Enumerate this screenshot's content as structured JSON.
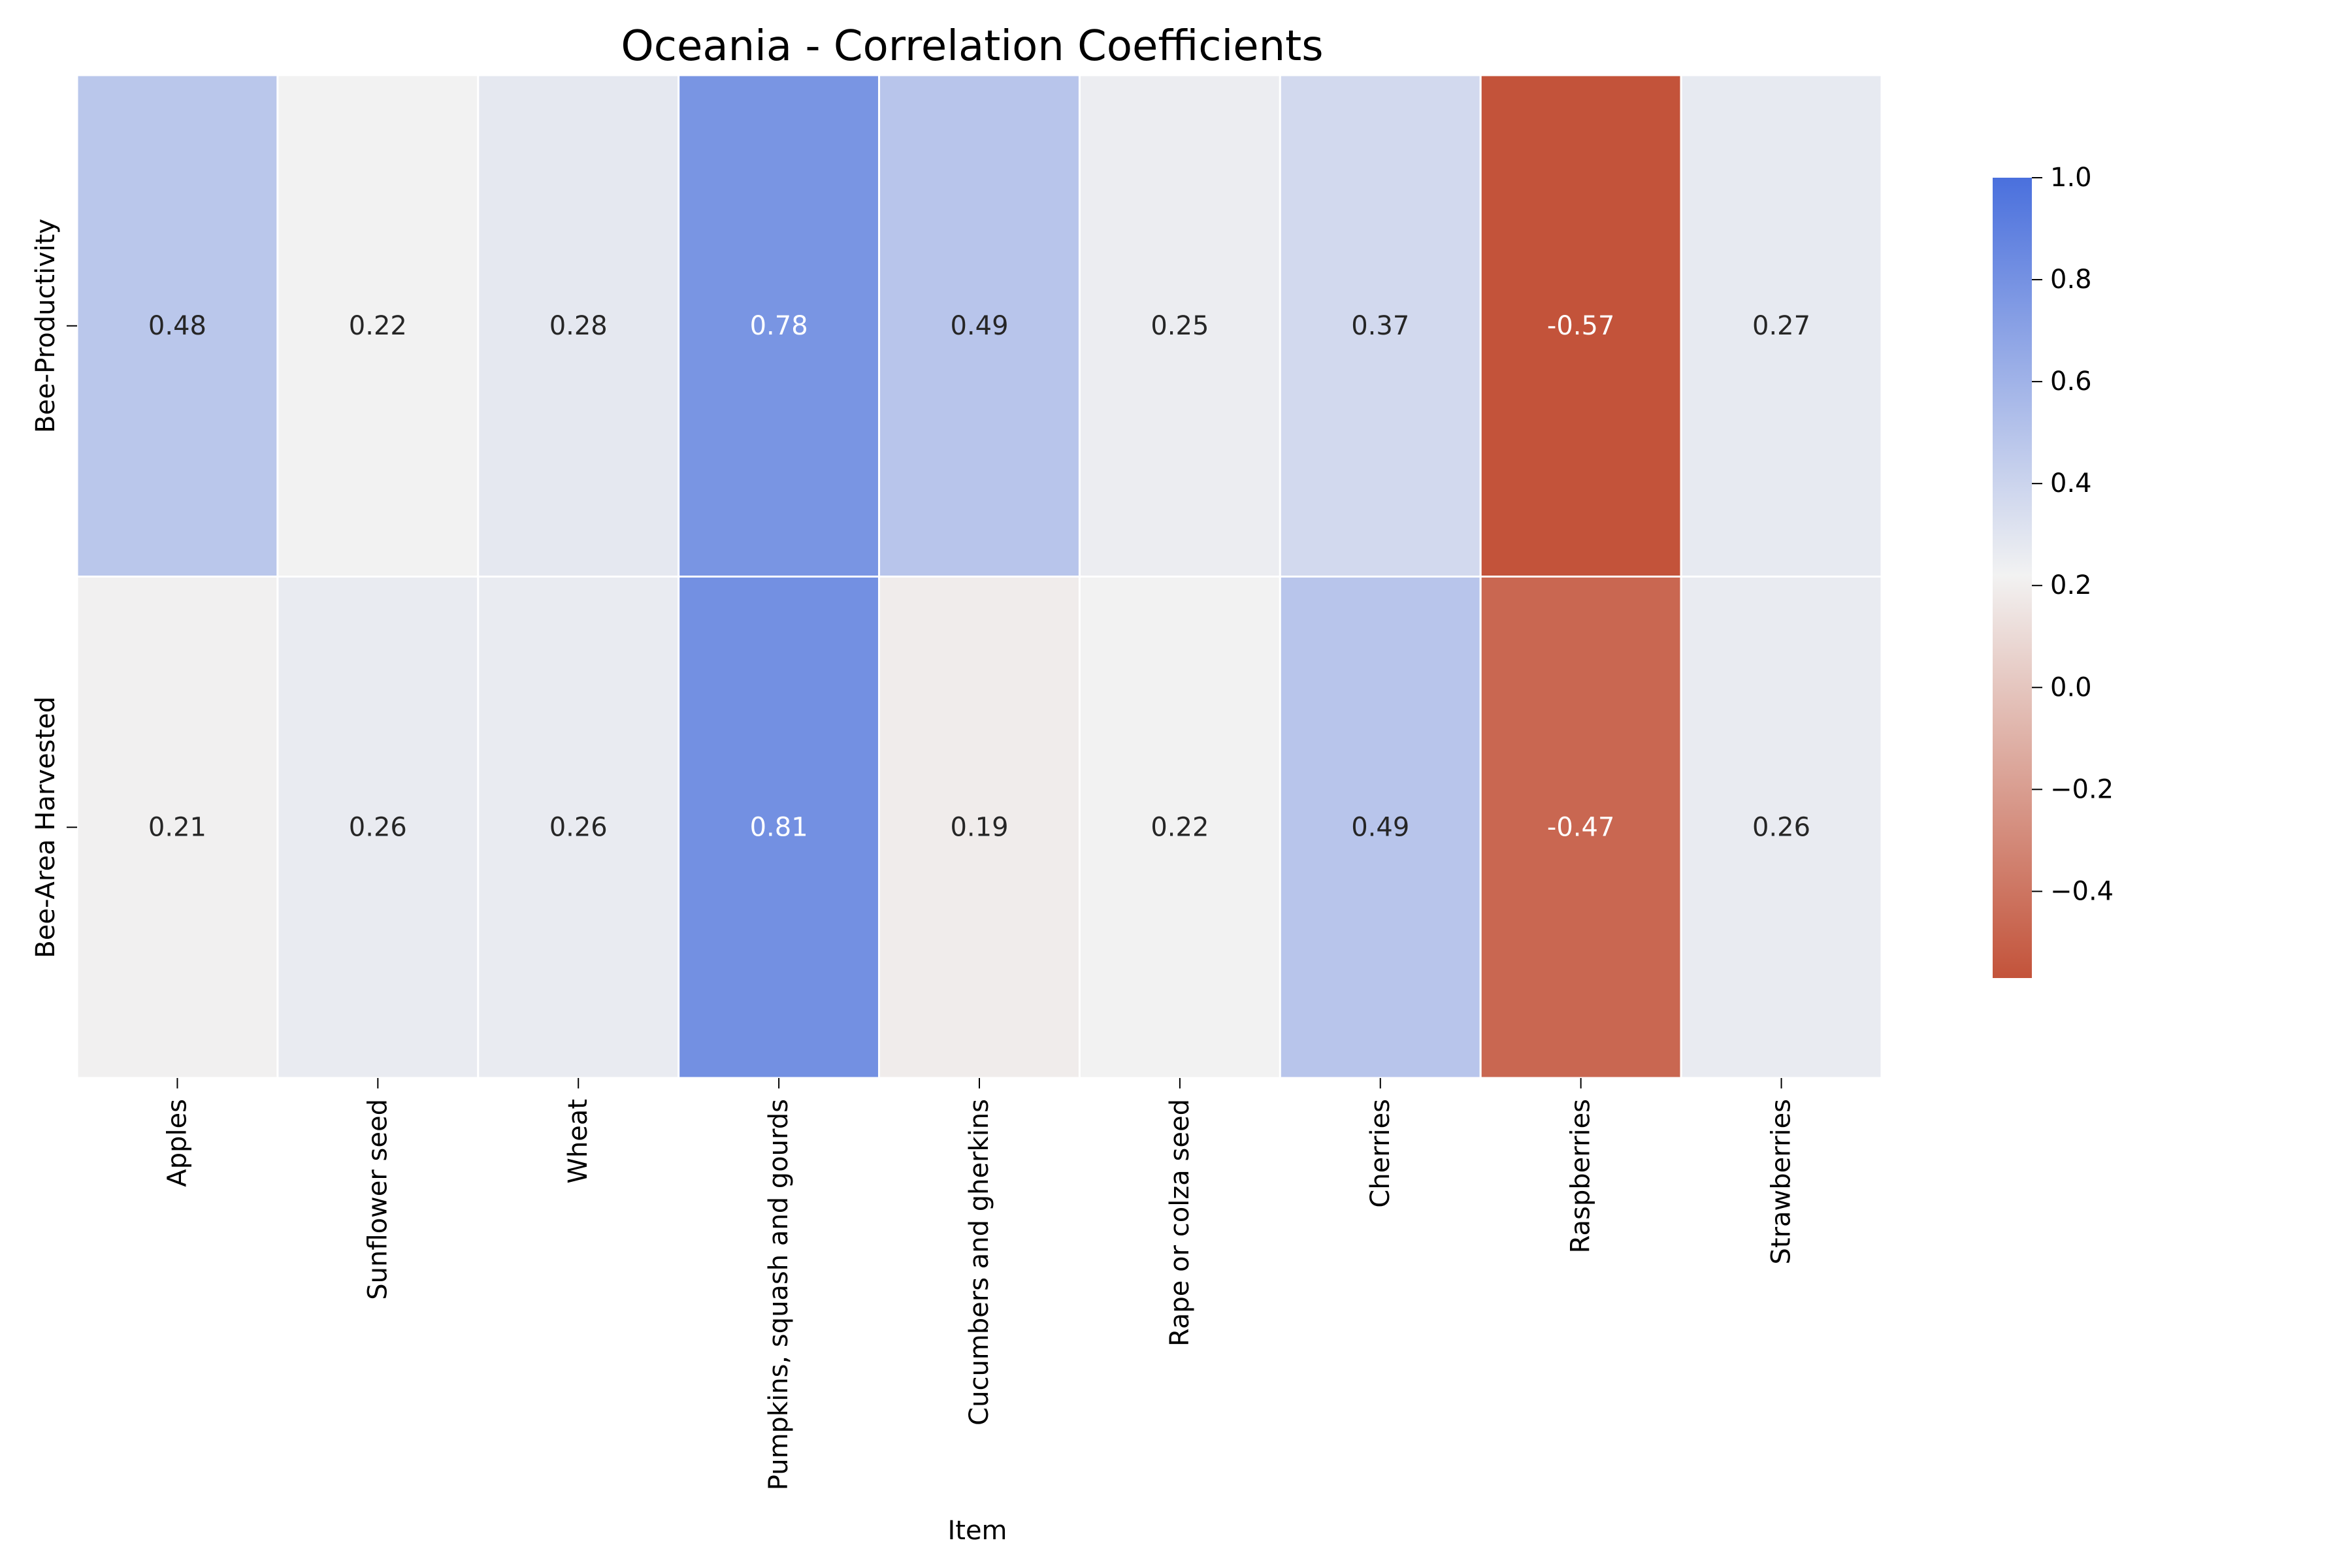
{
  "chart_data": {
    "type": "heatmap",
    "title": "Oceania - Correlation Coefficients",
    "xlabel": "Item",
    "ylabel": "",
    "x_categories": [
      "Apples",
      "Sunflower seed",
      "Wheat",
      "Pumpkins, squash and gourds",
      "Cucumbers and gherkins",
      "Rape or colza seed",
      "Cherries",
      "Raspberries",
      "Strawberries"
    ],
    "y_categories": [
      "Bee-Productivity",
      "Bee-Area Harvested"
    ],
    "values": [
      [
        0.48,
        0.22,
        0.28,
        0.78,
        0.49,
        0.25,
        0.37,
        -0.57,
        0.27
      ],
      [
        0.21,
        0.26,
        0.26,
        0.81,
        0.19,
        0.22,
        0.49,
        -0.47,
        0.26
      ]
    ],
    "value_labels": [
      [
        "0.48",
        "0.22",
        "0.28",
        "0.78",
        "0.49",
        "0.25",
        "0.37",
        "-0.57",
        "0.27"
      ],
      [
        "0.21",
        "0.26",
        "0.26",
        "0.81",
        "0.19",
        "0.22",
        "0.49",
        "-0.47",
        "0.26"
      ]
    ],
    "colorbar": {
      "range": [
        -0.57,
        1.0
      ],
      "center": 0.22,
      "ticks": [
        1.0,
        0.8,
        0.6,
        0.4,
        0.2,
        0.0,
        -0.2,
        -0.4
      ],
      "tick_labels": [
        "1.0",
        "0.8",
        "0.6",
        "0.4",
        "0.2",
        "0.0",
        "−0.2",
        "−0.4"
      ],
      "colors": {
        "low": "#c3533a",
        "mid": "#f2f2f2",
        "high": "#4a70dd"
      }
    },
    "legend_position": "right"
  }
}
